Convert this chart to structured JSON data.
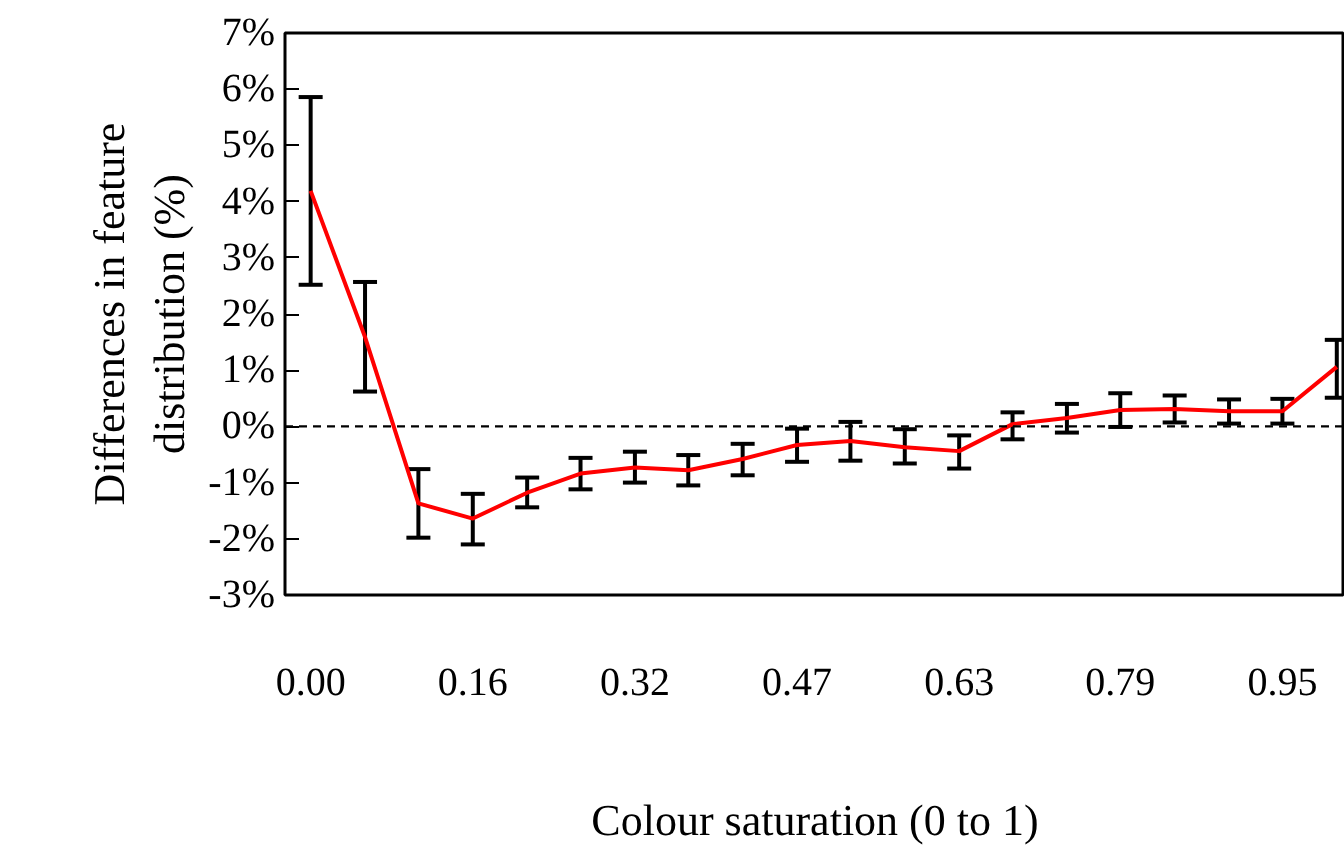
{
  "chart_data": {
    "type": "line",
    "xlabel": "Colour saturation (0 to 1)",
    "ylabel": "Differences in feature\ndistribution (%)",
    "x": [
      0,
      0.053,
      0.105,
      0.158,
      0.211,
      0.263,
      0.316,
      0.368,
      0.421,
      0.474,
      0.526,
      0.579,
      0.632,
      0.684,
      0.737,
      0.789,
      0.842,
      0.895,
      0.947,
      1
    ],
    "series": [
      {
        "color": "#ff0000",
        "values": [
          4.19,
          1.59,
          -1.37,
          -1.64,
          -1.18,
          -0.84,
          -0.73,
          -0.78,
          -0.58,
          -0.33,
          -0.26,
          -0.37,
          -0.44,
          0.04,
          0.15,
          0.29,
          0.31,
          0.27,
          0.27,
          1.06
        ],
        "errors": [
          [
            2.52,
            5.86
          ],
          [
            0.62,
            2.57
          ],
          [
            -1.98,
            -0.76
          ],
          [
            -2.1,
            -1.2
          ],
          [
            -1.44,
            -0.91
          ],
          [
            -1.12,
            -0.56
          ],
          [
            -1.0,
            -0.45
          ],
          [
            -1.05,
            -0.51
          ],
          [
            -0.87,
            -0.31
          ],
          [
            -0.63,
            -0.04
          ],
          [
            -0.61,
            0.08
          ],
          [
            -0.66,
            -0.05
          ],
          [
            -0.75,
            -0.16
          ],
          [
            -0.23,
            0.25
          ],
          [
            -0.11,
            0.4
          ],
          [
            -0.01,
            0.59
          ],
          [
            0.07,
            0.55
          ],
          [
            0.05,
            0.48
          ],
          [
            0.05,
            0.49
          ],
          [
            0.51,
            1.54
          ]
        ]
      }
    ],
    "xlim": [
      -0.025,
      1.008
    ],
    "xticks": [
      {
        "value": 0,
        "label": "0.00"
      },
      {
        "value": 0.158,
        "label": "0.16"
      },
      {
        "value": 0.316,
        "label": "0.32"
      },
      {
        "value": 0.474,
        "label": "0.47"
      },
      {
        "value": 0.632,
        "label": "0.63"
      },
      {
        "value": 0.789,
        "label": "0.79"
      },
      {
        "value": 0.947,
        "label": "0.95"
      }
    ],
    "ylim": [
      -3,
      7
    ],
    "yticks": [
      {
        "value": -3,
        "label": "-3%"
      },
      {
        "value": -2,
        "label": "-2%"
      },
      {
        "value": -1,
        "label": "-1%"
      },
      {
        "value": 0,
        "label": "0%"
      },
      {
        "value": 1,
        "label": "1%"
      },
      {
        "value": 2,
        "label": "2%"
      },
      {
        "value": 3,
        "label": "3%"
      },
      {
        "value": 4,
        "label": "4%"
      },
      {
        "value": 5,
        "label": "5%"
      },
      {
        "value": 6,
        "label": "6%"
      },
      {
        "value": 7,
        "label": "7%"
      }
    ],
    "ref_lines": [
      {
        "axis": "y",
        "value": 0,
        "color": "#000000",
        "line_style": "dashed"
      }
    ],
    "grid": false,
    "marker": "none",
    "line_style": "solid"
  }
}
